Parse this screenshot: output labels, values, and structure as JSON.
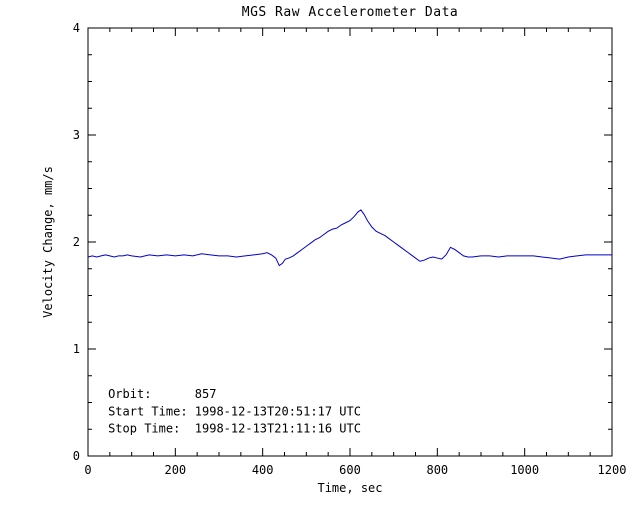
{
  "chart_data": {
    "type": "line",
    "title": "MGS Raw Accelerometer Data",
    "xlabel": "Time, sec",
    "ylabel": "Velocity Change, mm/s",
    "xlim": [
      0,
      1200
    ],
    "ylim": [
      0,
      4
    ],
    "x_ticks": [
      0,
      200,
      400,
      600,
      800,
      1000,
      1200
    ],
    "y_ticks": [
      0,
      1,
      2,
      3,
      4
    ],
    "x_minor_interval": 50,
    "y_minor_interval": 0.25,
    "grid": false,
    "legend": "none",
    "line_color": "#0000cc",
    "axis_color": "#000000",
    "background_color": "#ffffff",
    "series": [
      {
        "name": "Velocity Change",
        "x": [
          0,
          10,
          20,
          30,
          40,
          50,
          60,
          70,
          80,
          90,
          100,
          120,
          140,
          160,
          180,
          200,
          220,
          240,
          260,
          280,
          300,
          320,
          340,
          360,
          380,
          400,
          410,
          420,
          430,
          438,
          445,
          452,
          460,
          470,
          480,
          490,
          500,
          510,
          520,
          530,
          540,
          550,
          560,
          570,
          580,
          590,
          600,
          610,
          618,
          625,
          632,
          640,
          650,
          660,
          670,
          680,
          690,
          700,
          710,
          720,
          730,
          740,
          750,
          760,
          770,
          780,
          790,
          800,
          810,
          820,
          830,
          840,
          850,
          860,
          870,
          880,
          900,
          920,
          940,
          960,
          980,
          1000,
          1020,
          1040,
          1060,
          1080,
          1100,
          1120,
          1140,
          1160,
          1180,
          1200
        ],
        "y": [
          1.86,
          1.87,
          1.86,
          1.87,
          1.88,
          1.87,
          1.86,
          1.87,
          1.87,
          1.88,
          1.87,
          1.86,
          1.88,
          1.87,
          1.88,
          1.87,
          1.88,
          1.87,
          1.89,
          1.88,
          1.87,
          1.87,
          1.86,
          1.87,
          1.88,
          1.89,
          1.9,
          1.88,
          1.85,
          1.78,
          1.8,
          1.84,
          1.85,
          1.87,
          1.9,
          1.93,
          1.96,
          1.99,
          2.02,
          2.04,
          2.07,
          2.1,
          2.12,
          2.13,
          2.16,
          2.18,
          2.2,
          2.24,
          2.28,
          2.3,
          2.26,
          2.2,
          2.14,
          2.1,
          2.08,
          2.06,
          2.03,
          2.0,
          1.97,
          1.94,
          1.91,
          1.88,
          1.85,
          1.82,
          1.83,
          1.85,
          1.86,
          1.85,
          1.84,
          1.88,
          1.95,
          1.93,
          1.9,
          1.87,
          1.86,
          1.86,
          1.87,
          1.87,
          1.86,
          1.87,
          1.87,
          1.87,
          1.87,
          1.86,
          1.85,
          1.84,
          1.86,
          1.87,
          1.88,
          1.88,
          1.88,
          1.88
        ]
      }
    ],
    "annotations": [
      {
        "text": "Orbit:      857",
        "x": 46,
        "y": 0.54
      },
      {
        "text": "Start Time: 1998-12-13T20:51:17 UTC",
        "x": 46,
        "y": 0.38
      },
      {
        "text": "Stop Time:  1998-12-13T21:11:16 UTC",
        "x": 46,
        "y": 0.22
      }
    ]
  }
}
